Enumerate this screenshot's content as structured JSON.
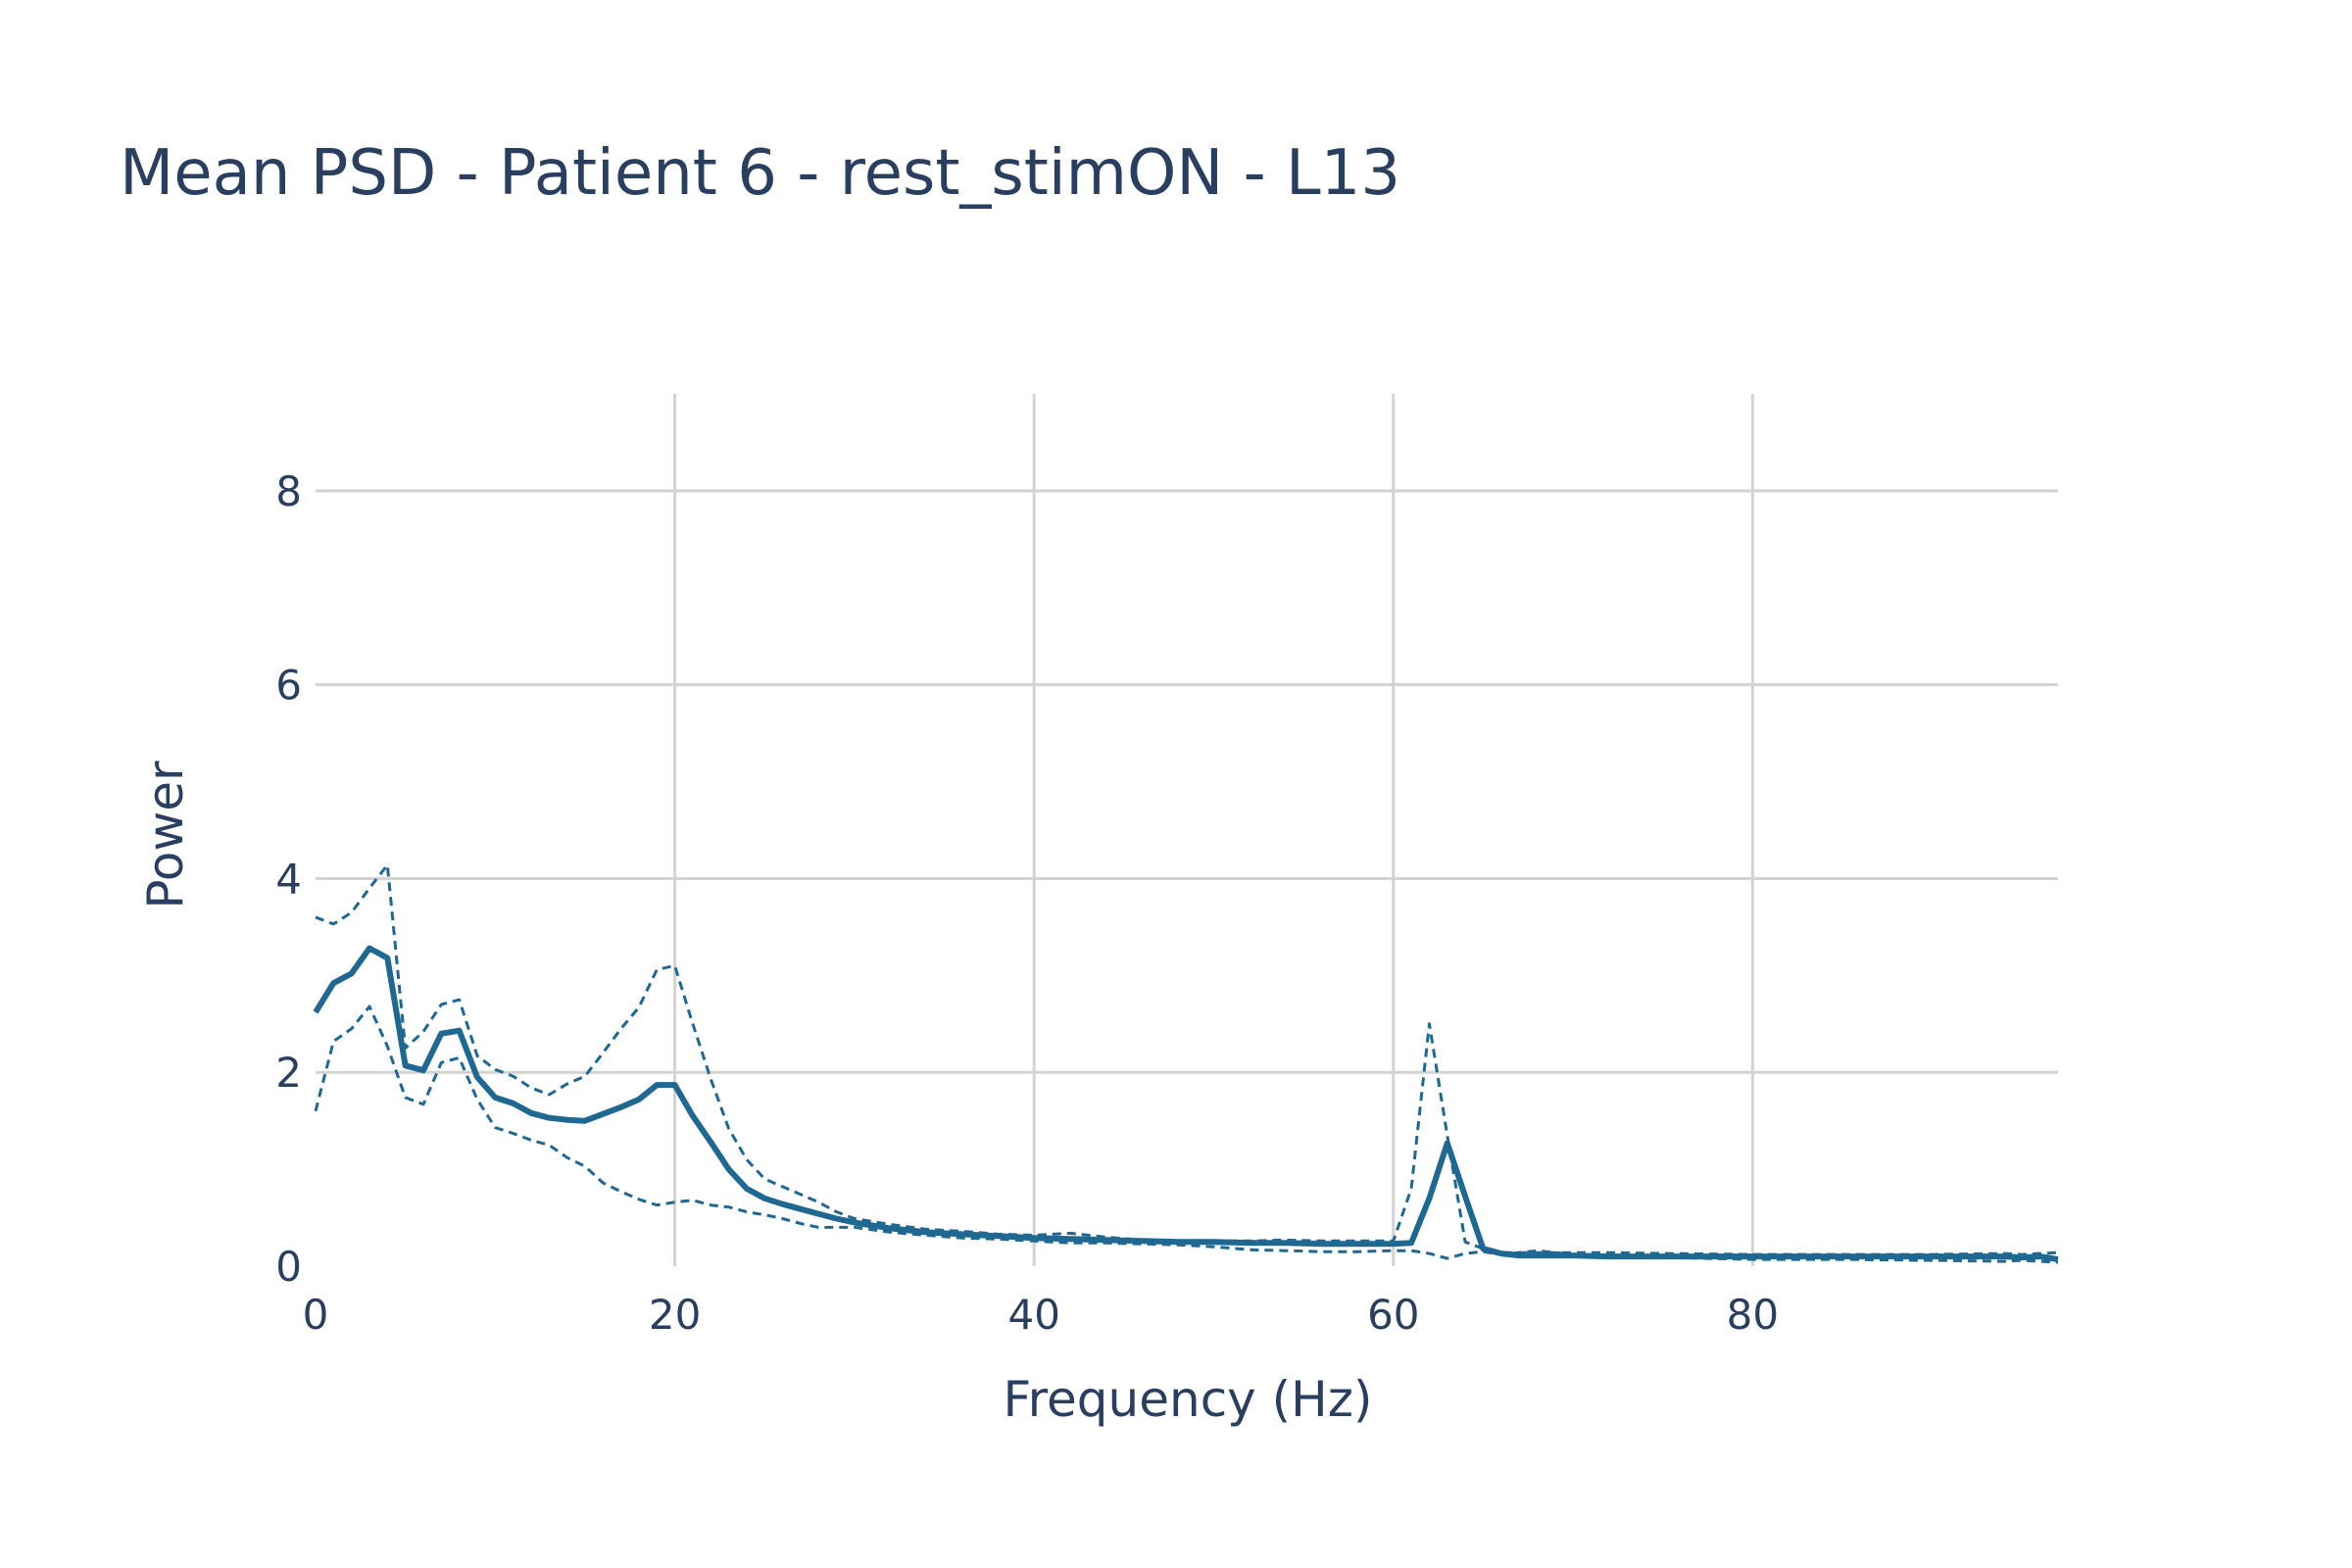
{
  "chart_data": {
    "type": "line",
    "title": "Mean PSD - Patient 6 - rest_stimON - L13",
    "xlabel": "Frequency (Hz)",
    "ylabel": "Power",
    "xlim": [
      0,
      97
    ],
    "ylim": [
      0,
      9
    ],
    "xticks": [
      0,
      20,
      40,
      60,
      80
    ],
    "yticks": [
      0,
      2,
      4,
      6,
      8
    ],
    "grid": true,
    "colors": {
      "line": "#1f6891",
      "grid": "#d3d3d3",
      "text": "#2a3f5f"
    },
    "series": [
      {
        "style": "solid",
        "x": [
          0,
          1,
          2,
          3,
          4,
          5,
          6,
          7,
          8,
          9,
          10,
          11,
          12,
          13,
          14,
          15,
          16,
          17,
          18,
          19,
          20,
          21,
          22,
          23,
          24,
          25,
          26,
          27,
          28,
          29,
          30,
          32,
          34,
          36,
          38,
          40,
          42,
          44,
          46,
          48,
          50,
          52,
          54,
          56,
          58,
          60,
          61,
          62,
          63,
          64,
          65,
          66,
          67,
          68,
          70,
          72,
          75,
          80,
          85,
          90,
          94,
          95,
          96,
          97
        ],
        "y": [
          2.62,
          2.92,
          3.02,
          3.28,
          3.18,
          2.07,
          2.02,
          2.4,
          2.43,
          1.95,
          1.74,
          1.68,
          1.58,
          1.53,
          1.51,
          1.5,
          1.57,
          1.64,
          1.72,
          1.87,
          1.87,
          1.55,
          1.28,
          1.0,
          0.8,
          0.7,
          0.64,
          0.59,
          0.54,
          0.49,
          0.45,
          0.39,
          0.35,
          0.33,
          0.31,
          0.29,
          0.28,
          0.27,
          0.26,
          0.25,
          0.25,
          0.24,
          0.24,
          0.23,
          0.23,
          0.23,
          0.24,
          0.7,
          1.27,
          0.72,
          0.18,
          0.13,
          0.11,
          0.11,
          0.11,
          0.1,
          0.1,
          0.1,
          0.1,
          0.1,
          0.1,
          0.09,
          0.1,
          0.07
        ]
      },
      {
        "style": "dashed",
        "x": [
          0,
          1,
          2,
          3,
          4,
          5,
          6,
          7,
          8,
          9,
          10,
          11,
          12,
          13,
          14,
          15,
          16,
          17,
          18,
          19,
          20,
          21,
          22,
          23,
          24,
          25,
          26,
          27,
          28,
          29,
          30,
          32,
          34,
          36,
          38,
          40,
          42,
          44,
          46,
          48,
          50,
          52,
          54,
          56,
          58,
          60,
          61,
          62,
          63,
          64,
          65,
          66,
          67,
          68,
          70,
          72,
          75,
          80,
          85,
          90,
          94,
          95,
          96,
          97
        ],
        "y": [
          3.6,
          3.53,
          3.65,
          3.9,
          4.14,
          2.25,
          2.42,
          2.7,
          2.75,
          2.17,
          2.03,
          1.96,
          1.84,
          1.77,
          1.88,
          1.96,
          2.2,
          2.45,
          2.67,
          3.06,
          3.1,
          2.5,
          1.93,
          1.42,
          1.1,
          0.9,
          0.82,
          0.74,
          0.66,
          0.56,
          0.49,
          0.43,
          0.38,
          0.36,
          0.33,
          0.32,
          0.34,
          0.3,
          0.27,
          0.26,
          0.26,
          0.26,
          0.27,
          0.26,
          0.26,
          0.26,
          0.8,
          2.5,
          1.35,
          0.25,
          0.18,
          0.14,
          0.14,
          0.14,
          0.14,
          0.14,
          0.13,
          0.12,
          0.12,
          0.12,
          0.13,
          0.12,
          0.13,
          0.14
        ]
      },
      {
        "style": "dashed",
        "x": [
          0,
          1,
          2,
          3,
          4,
          5,
          6,
          7,
          8,
          9,
          10,
          11,
          12,
          13,
          14,
          15,
          16,
          17,
          18,
          19,
          20,
          21,
          22,
          23,
          24,
          25,
          26,
          27,
          28,
          29,
          30,
          32,
          34,
          36,
          38,
          40,
          42,
          44,
          46,
          48,
          50,
          52,
          54,
          56,
          58,
          60,
          61,
          62,
          63,
          64,
          65,
          66,
          67,
          68,
          70,
          72,
          75,
          80,
          85,
          90,
          94,
          95,
          96,
          97
        ],
        "y": [
          1.6,
          2.32,
          2.45,
          2.68,
          2.27,
          1.74,
          1.67,
          2.1,
          2.15,
          1.72,
          1.43,
          1.37,
          1.3,
          1.25,
          1.12,
          1.03,
          0.86,
          0.77,
          0.69,
          0.63,
          0.66,
          0.68,
          0.63,
          0.61,
          0.56,
          0.53,
          0.49,
          0.44,
          0.4,
          0.4,
          0.4,
          0.35,
          0.32,
          0.29,
          0.28,
          0.26,
          0.24,
          0.24,
          0.23,
          0.22,
          0.2,
          0.17,
          0.16,
          0.15,
          0.15,
          0.16,
          0.16,
          0.13,
          0.08,
          0.13,
          0.15,
          0.12,
          0.14,
          0.16,
          0.12,
          0.1,
          0.09,
          0.07,
          0.07,
          0.06,
          0.05,
          0.06,
          0.05,
          0.04
        ]
      }
    ]
  }
}
